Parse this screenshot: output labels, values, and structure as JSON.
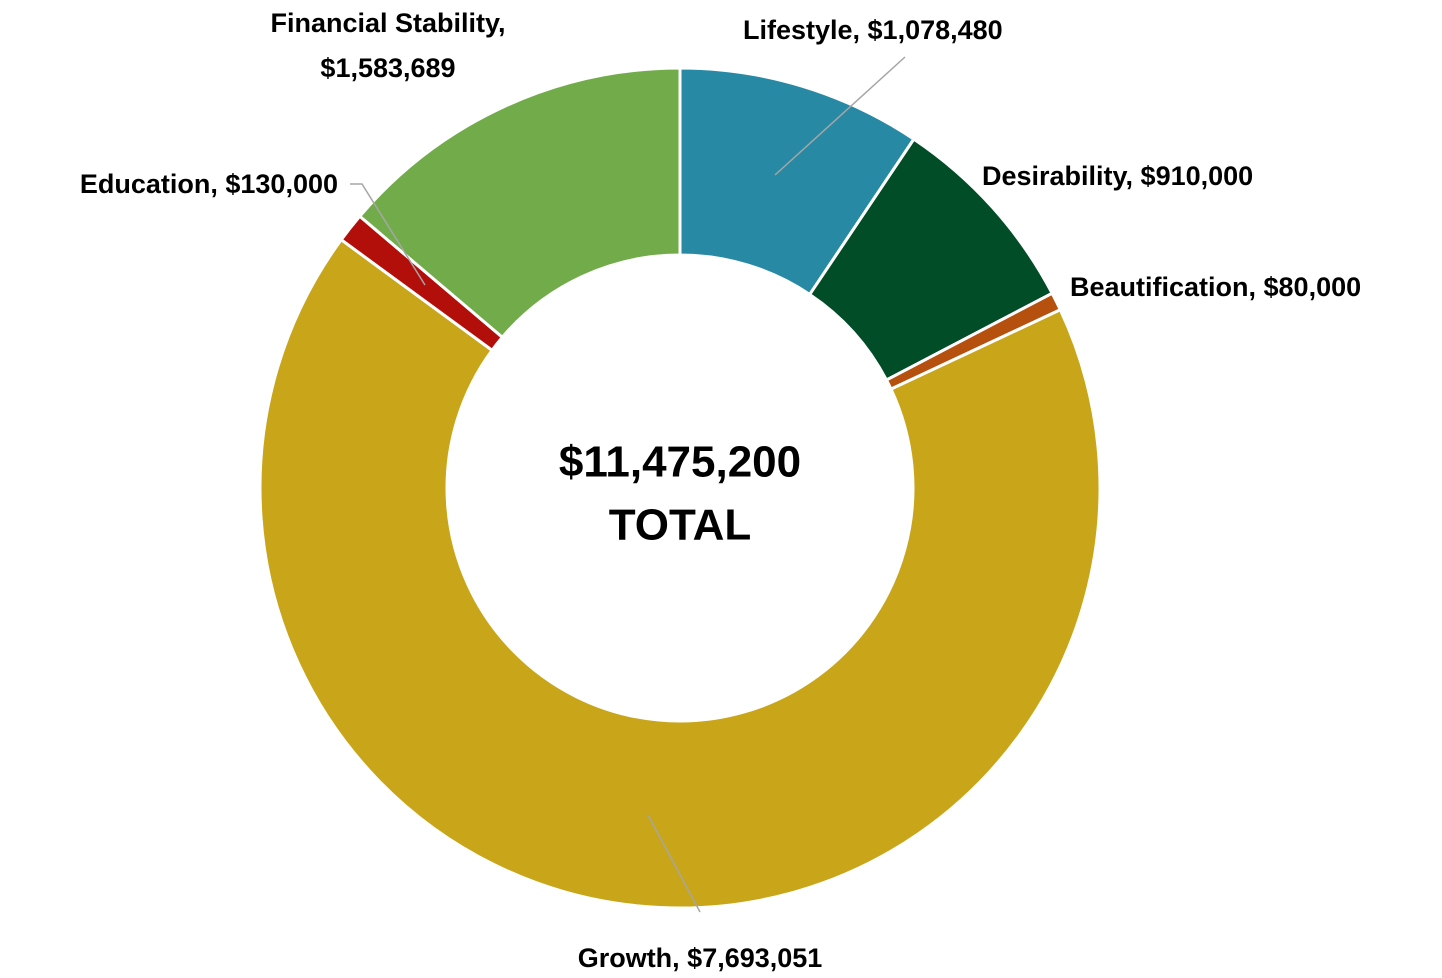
{
  "chart_data": {
    "type": "donut",
    "center_text": [
      "$11,475,200",
      "TOTAL"
    ],
    "values": [
      1078480,
      910000,
      80000,
      7693051,
      130000,
      1583689
    ],
    "value_labels": [
      "Lifestyle,  $1,078,480",
      "Desirability,  $910,000",
      "Beautification,  $80,000",
      "Growth,  $7,693,051",
      "Education,  $130,000",
      "Financial Stability, $1,583,689"
    ],
    "colors": [
      "#2789a4",
      "#004d28",
      "#b5500f",
      "#c8a519",
      "#b30f0a",
      "#72ac4a"
    ]
  }
}
